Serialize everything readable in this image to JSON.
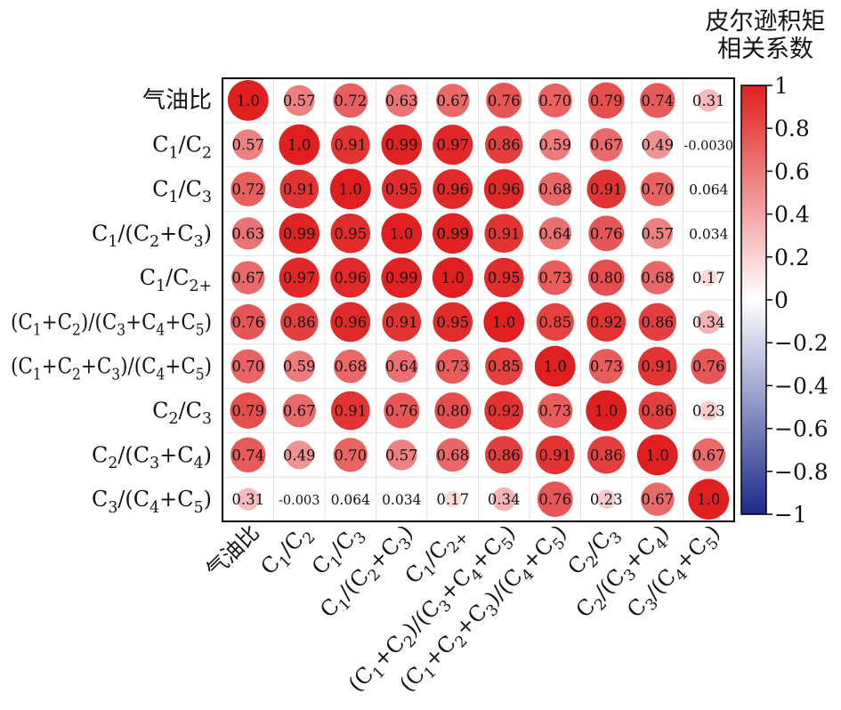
{
  "chart_data": {
    "type": "heatmap",
    "title": "皮尔逊积矩\n相关系数",
    "title_lines": [
      "皮尔逊积矩",
      "相关系数"
    ],
    "row_labels": [
      "气油比",
      "C1/C2",
      "C1/C3",
      "C1/(C2+C3)",
      "C1/C2+",
      "(C1+C2)/(C3+C4+C5)",
      "(C1+C2+C3)/(C4+C5)",
      "C2/C3",
      "C2/(C3+C4)",
      "C3/(C4+C5)"
    ],
    "column_labels": [
      "气油比",
      "C1/C2",
      "C1/C3",
      "C1/(C2+C3)",
      "C1/C2+",
      "(C1+C2)/(C3+C4+C5)",
      "(C1+C2+C3)/(C4+C5)",
      "C2/C3",
      "C2/(C3+C4)",
      "C3/(C4+C5)"
    ],
    "values": [
      [
        1.0,
        0.57,
        0.72,
        0.63,
        0.67,
        0.76,
        0.7,
        0.79,
        0.74,
        0.31
      ],
      [
        0.57,
        1.0,
        0.91,
        0.99,
        0.97,
        0.86,
        0.59,
        0.67,
        0.49,
        -0.003
      ],
      [
        0.72,
        0.91,
        1.0,
        0.95,
        0.96,
        0.96,
        0.68,
        0.91,
        0.7,
        0.064
      ],
      [
        0.63,
        0.99,
        0.95,
        1.0,
        0.99,
        0.91,
        0.64,
        0.76,
        0.57,
        0.034
      ],
      [
        0.67,
        0.97,
        0.96,
        0.99,
        1.0,
        0.95,
        0.73,
        0.8,
        0.68,
        0.17
      ],
      [
        0.76,
        0.86,
        0.96,
        0.91,
        0.95,
        1.0,
        0.85,
        0.92,
        0.86,
        0.34
      ],
      [
        0.7,
        0.59,
        0.68,
        0.64,
        0.73,
        0.85,
        1.0,
        0.73,
        0.91,
        0.76
      ],
      [
        0.79,
        0.67,
        0.91,
        0.76,
        0.8,
        0.92,
        0.73,
        1.0,
        0.86,
        0.23
      ],
      [
        0.74,
        0.49,
        0.7,
        0.57,
        0.68,
        0.86,
        0.91,
        0.86,
        1.0,
        0.67
      ],
      [
        0.31,
        -0.003,
        0.064,
        0.034,
        0.17,
        0.34,
        0.76,
        0.23,
        0.67,
        1.0
      ]
    ],
    "cell_text": [
      [
        "1.0",
        "0.57",
        "0.72",
        "0.63",
        "0.67",
        "0.76",
        "0.70",
        "0.79",
        "0.74",
        "0.31"
      ],
      [
        "0.57",
        "1.0",
        "0.91",
        "0.99",
        "0.97",
        "0.86",
        "0.59",
        "0.67",
        "0.49",
        "-0.0030"
      ],
      [
        "0.72",
        "0.91",
        "1.0",
        "0.95",
        "0.96",
        "0.96",
        "0.68",
        "0.91",
        "0.70",
        "0.064"
      ],
      [
        "0.63",
        "0.99",
        "0.95",
        "1.0",
        "0.99",
        "0.91",
        "0.64",
        "0.76",
        "0.57",
        "0.034"
      ],
      [
        "0.67",
        "0.97",
        "0.96",
        "0.99",
        "1.0",
        "0.95",
        "0.73",
        "0.80",
        "0.68",
        "0.17"
      ],
      [
        "0.76",
        "0.86",
        "0.96",
        "0.91",
        "0.95",
        "1.0",
        "0.85",
        "0.92",
        "0.86",
        "0.34"
      ],
      [
        "0.70",
        "0.59",
        "0.68",
        "0.64",
        "0.73",
        "0.85",
        "1.0",
        "0.73",
        "0.91",
        "0.76"
      ],
      [
        "0.79",
        "0.67",
        "0.91",
        "0.76",
        "0.80",
        "0.92",
        "0.73",
        "1.0",
        "0.86",
        "0.23"
      ],
      [
        "0.74",
        "0.49",
        "0.70",
        "0.57",
        "0.68",
        "0.86",
        "0.91",
        "0.86",
        "1.0",
        "0.67"
      ],
      [
        "0.31",
        "-0.003",
        "0.064",
        "0.034",
        "0.17",
        "0.34",
        "0.76",
        "0.23",
        "0.67",
        "1.0"
      ]
    ],
    "colorbar": {
      "range": [
        -1,
        1
      ],
      "ticks": [
        "1",
        "0.8",
        "0.6",
        "0.4",
        "0.2",
        "0",
        "-0.2",
        "-0.4",
        "-0.6",
        "-0.8",
        "-1"
      ],
      "tick_values": [
        1,
        0.8,
        0.6,
        0.4,
        0.2,
        0,
        -0.2,
        -0.4,
        -0.6,
        -0.8,
        -1
      ],
      "colors": {
        "positive": "#e02020",
        "zero": "#ffffff",
        "negative": "#1a2a8a"
      }
    },
    "grid": true,
    "legend_position": "right"
  }
}
